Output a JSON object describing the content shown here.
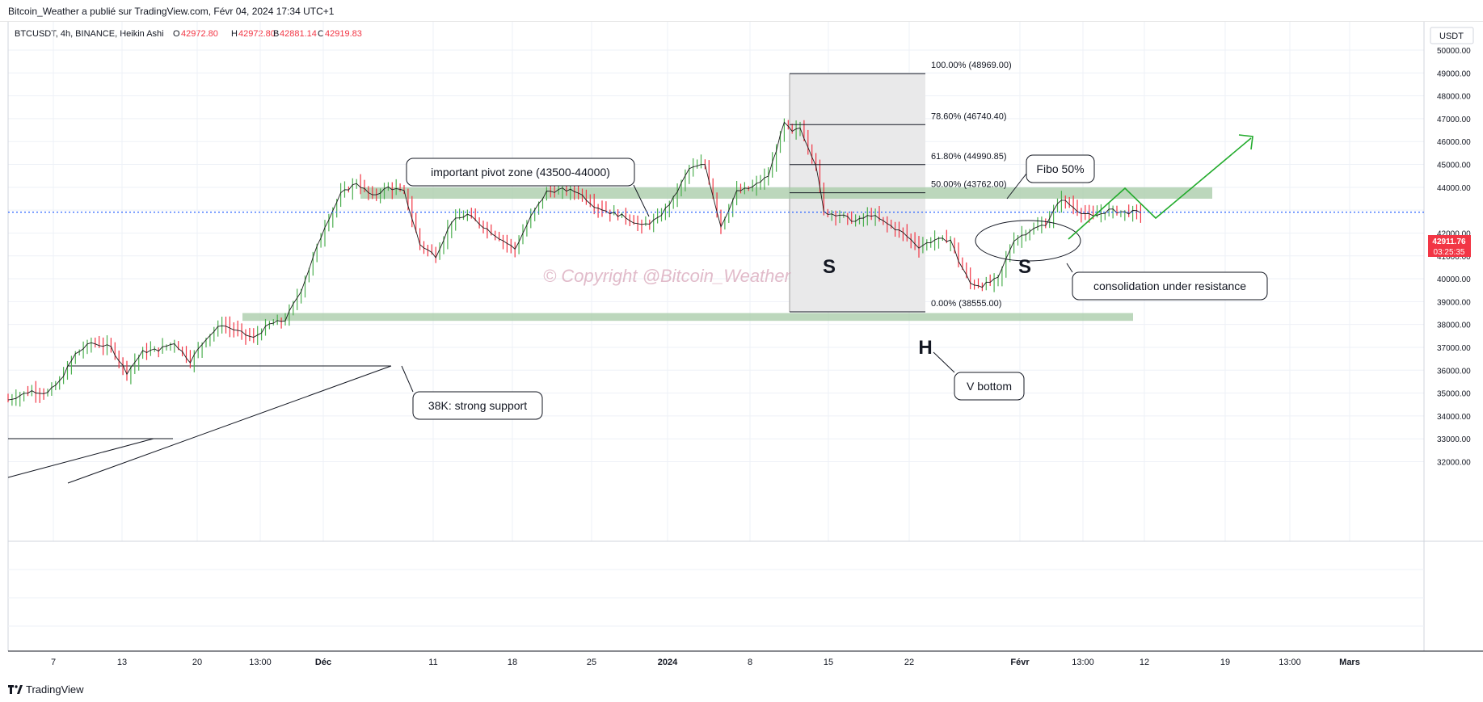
{
  "header": {
    "publish_line": "Bitcoin_Weather a publié sur TradingView.com, Févr 04, 2024 17:34 UTC+1"
  },
  "legend": {
    "symbol": "BTCUSDT, 4h, BINANCE, Heikin Ashi",
    "o_label": "O",
    "o_value": "42972.80",
    "h_label": "H",
    "h_value": "42972.80",
    "b_label": "B",
    "b_value": "42881.14",
    "c_label": "C",
    "c_value": "42919.83"
  },
  "currency_button": "USDT",
  "price_tag": {
    "price": "42911.76",
    "countdown": "03:25:35"
  },
  "watermark": "© Copyright @Bitcoin_Weather",
  "footer": {
    "brand": "TradingView"
  },
  "colors": {
    "up": "#4caf50",
    "down": "#f23645",
    "zone": "#a5c9a5",
    "arrow": "#22ab2c",
    "price_line": "#2962ff",
    "price_tag_bg": "#f23645",
    "grid": "#eef1f7"
  },
  "chart_data": {
    "type": "candlestick",
    "title": "BTCUSDT, 4h, BINANCE, Heikin Ashi",
    "x_ticks": [
      "7",
      "13",
      "20",
      "13:00",
      "Déc",
      "11",
      "18",
      "25",
      "2024",
      "8",
      "15",
      "22",
      "Févr",
      "13:00",
      "12",
      "19",
      "13:00",
      "Mars"
    ],
    "y_ticks": [
      "32000.00",
      "33000.00",
      "34000.00",
      "35000.00",
      "36000.00",
      "37000.00",
      "38000.00",
      "39000.00",
      "40000.00",
      "41000.00",
      "42000.00",
      "43000.00",
      "44000.00",
      "45000.00",
      "46000.00",
      "47000.00",
      "48000.00",
      "49000.00",
      "50000.00"
    ],
    "ylim": [
      31900,
      50200
    ],
    "price_path": [
      [
        0,
        34700
      ],
      [
        6,
        35100
      ],
      [
        10,
        35000
      ],
      [
        13,
        35500
      ],
      [
        17,
        36700
      ],
      [
        21,
        37200
      ],
      [
        26,
        37000
      ],
      [
        30,
        35900
      ],
      [
        34,
        36800
      ],
      [
        38,
        36900
      ],
      [
        42,
        37200
      ],
      [
        46,
        36400
      ],
      [
        50,
        37400
      ],
      [
        54,
        38000
      ],
      [
        58,
        37700
      ],
      [
        62,
        37400
      ],
      [
        66,
        38000
      ],
      [
        70,
        38200
      ],
      [
        74,
        39500
      ],
      [
        77,
        40900
      ],
      [
        80,
        42300
      ],
      [
        84,
        43700
      ],
      [
        88,
        44200
      ],
      [
        92,
        43600
      ],
      [
        96,
        44000
      ],
      [
        100,
        43800
      ],
      [
        104,
        41500
      ],
      [
        108,
        41000
      ],
      [
        112,
        42500
      ],
      [
        116,
        42800
      ],
      [
        120,
        42300
      ],
      [
        124,
        41800
      ],
      [
        128,
        41300
      ],
      [
        132,
        42700
      ],
      [
        136,
        43800
      ],
      [
        140,
        43900
      ],
      [
        144,
        43800
      ],
      [
        148,
        43200
      ],
      [
        152,
        42900
      ],
      [
        156,
        42700
      ],
      [
        160,
        42300
      ],
      [
        164,
        42600
      ],
      [
        168,
        43500
      ],
      [
        172,
        44800
      ],
      [
        176,
        45000
      ],
      [
        180,
        42300
      ],
      [
        184,
        43800
      ],
      [
        188,
        44000
      ],
      [
        192,
        44500
      ],
      [
        196,
        46800
      ],
      [
        198,
        46400
      ],
      [
        200,
        46600
      ],
      [
        204,
        45000
      ],
      [
        206,
        42900
      ],
      [
        210,
        42800
      ],
      [
        214,
        42500
      ],
      [
        218,
        42800
      ],
      [
        222,
        42400
      ],
      [
        226,
        42000
      ],
      [
        230,
        41400
      ],
      [
        234,
        41700
      ],
      [
        238,
        41700
      ],
      [
        240,
        40800
      ],
      [
        243,
        39800
      ],
      [
        246,
        39700
      ],
      [
        250,
        40000
      ],
      [
        254,
        41700
      ],
      [
        258,
        42100
      ],
      [
        262,
        42400
      ],
      [
        266,
        43500
      ],
      [
        270,
        43000
      ],
      [
        274,
        42700
      ],
      [
        278,
        43000
      ],
      [
        282,
        42900
      ],
      [
        286,
        42919.83
      ]
    ],
    "fibonacci": [
      {
        "level": "100.00%",
        "price": 48969.0
      },
      {
        "level": "78.60%",
        "price": 46740.4
      },
      {
        "level": "61.80%",
        "price": 44990.85
      },
      {
        "level": "50.00%",
        "price": 43762.0
      },
      {
        "level": "0.00%",
        "price": 38555.0
      }
    ],
    "zones": [
      {
        "name": "pivot",
        "low": 43500,
        "high": 44000
      },
      {
        "name": "support",
        "low": 38300,
        "high": 38500
      }
    ],
    "annotations": [
      {
        "text": "important pivot zone (43500-44000)"
      },
      {
        "text": "Fibo 50%"
      },
      {
        "text": "consolidation under resistance"
      },
      {
        "text": "38K: strong support"
      },
      {
        "text": "V bottom"
      },
      {
        "text": "S"
      },
      {
        "text": "H"
      },
      {
        "text": "S"
      }
    ],
    "last_price": 42911.76
  }
}
